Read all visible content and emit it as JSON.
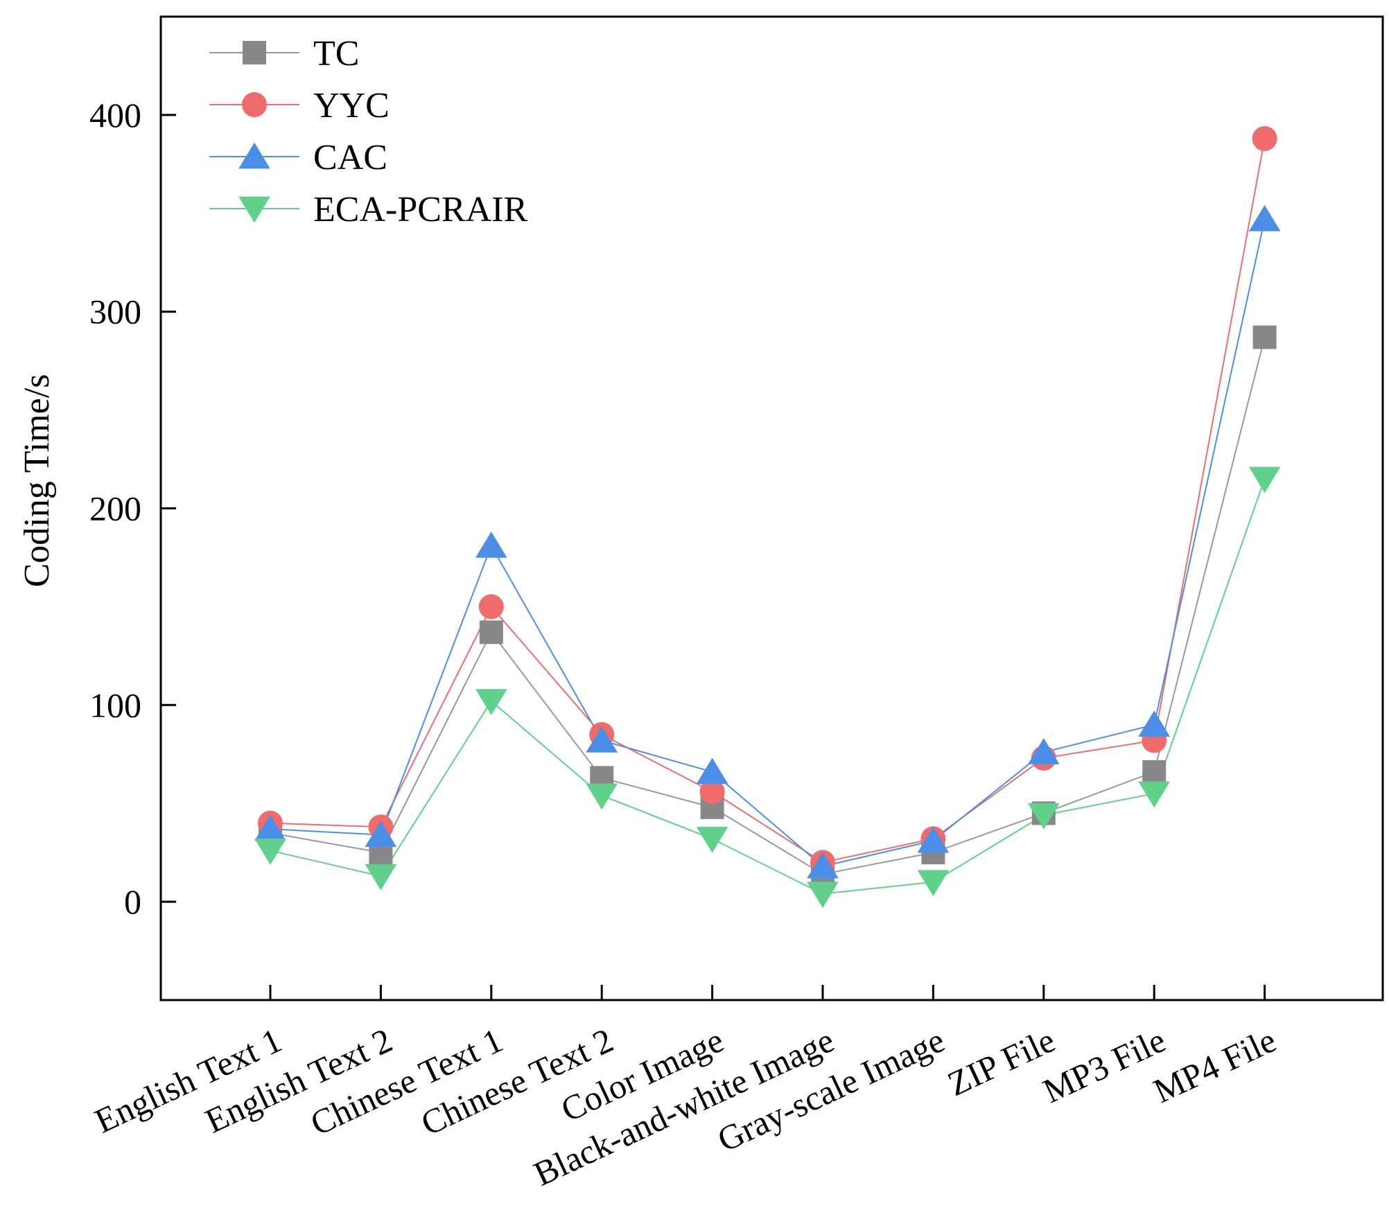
{
  "chart_data": {
    "type": "line",
    "title": "",
    "xlabel": "",
    "ylabel": "Coding Time/s",
    "ylim": [
      -50,
      450
    ],
    "yticks": [
      0,
      100,
      200,
      300,
      400
    ],
    "grid": false,
    "legend_position": "top-left",
    "categories": [
      "English Text 1",
      "English Text 2",
      "Chinese Text 1",
      "Chinese Text 2",
      "Color Image",
      "Black-and-white Image",
      "Gray-scale Image",
      "ZIP File",
      "MP3 File",
      "MP4 File"
    ],
    "series": [
      {
        "name": "TC",
        "marker": "square",
        "color": "#888888",
        "line_color": "#999999",
        "values": [
          35,
          25,
          137,
          63,
          48,
          14,
          25,
          45,
          66,
          287
        ]
      },
      {
        "name": "YYC",
        "marker": "circle",
        "color": "#f06b6b",
        "line_color": "#f06b6b",
        "values": [
          40,
          38,
          150,
          85,
          56,
          20,
          32,
          73,
          82,
          388
        ]
      },
      {
        "name": "CAC",
        "marker": "triangle-up",
        "color": "#4a8ee8",
        "line_color": "#4a8ee8",
        "values": [
          37,
          34,
          181,
          82,
          66,
          18,
          31,
          76,
          90,
          347
        ]
      },
      {
        "name": "ECA-PCRAIR",
        "marker": "triangle-down",
        "color": "#5fd18a",
        "line_color": "#5fd18a",
        "values": [
          26,
          13,
          102,
          54,
          32,
          4,
          10,
          44,
          55,
          215
        ]
      }
    ]
  }
}
